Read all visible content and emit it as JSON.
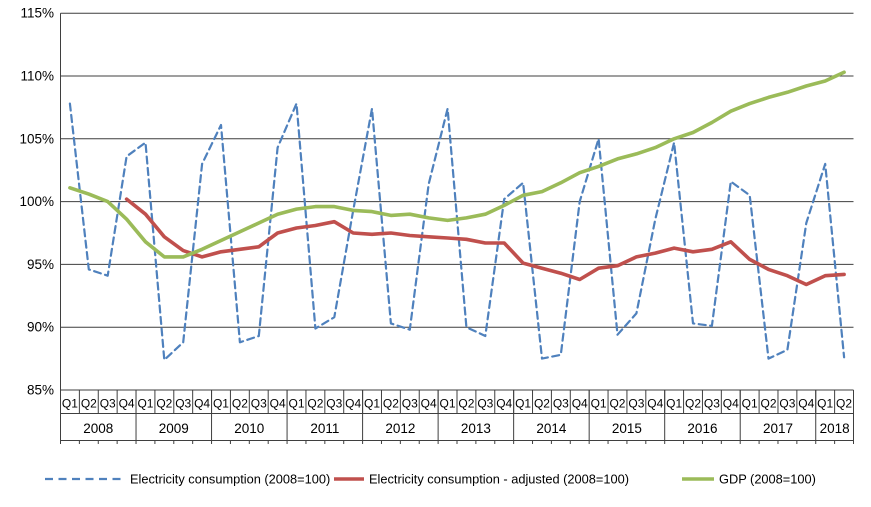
{
  "chart_data": {
    "type": "line",
    "title": "",
    "y_axis": {
      "unit": "%",
      "min": 85,
      "max": 115,
      "step": 5,
      "tick_labels": [
        "115%",
        "110%",
        "105%",
        "100%",
        "95%",
        "90%",
        "85%"
      ]
    },
    "x_axis": {
      "quarter_labels": [
        "Q1",
        "Q2",
        "Q3",
        "Q4",
        "Q1",
        "Q2",
        "Q3",
        "Q4",
        "Q1",
        "Q2",
        "Q3",
        "Q4",
        "Q1",
        "Q2",
        "Q3",
        "Q4",
        "Q1",
        "Q2",
        "Q3",
        "Q4",
        "Q1",
        "Q2",
        "Q3",
        "Q4",
        "Q1",
        "Q2",
        "Q3",
        "Q4",
        "Q1",
        "Q2",
        "Q3",
        "Q4",
        "Q1",
        "Q2",
        "Q3",
        "Q4",
        "Q1",
        "Q2",
        "Q3",
        "Q4",
        "Q1",
        "Q2"
      ],
      "years": [
        {
          "label": "2008",
          "quarters": 4
        },
        {
          "label": "2009",
          "quarters": 4
        },
        {
          "label": "2010",
          "quarters": 4
        },
        {
          "label": "2011",
          "quarters": 4
        },
        {
          "label": "2012",
          "quarters": 4
        },
        {
          "label": "2013",
          "quarters": 4
        },
        {
          "label": "2014",
          "quarters": 4
        },
        {
          "label": "2015",
          "quarters": 4
        },
        {
          "label": "2016",
          "quarters": 4
        },
        {
          "label": "2017",
          "quarters": 4
        },
        {
          "label": "2018",
          "quarters": 2
        }
      ]
    },
    "grid": true,
    "legend_position": "bottom",
    "series": [
      {
        "name": "Electricity consumption (2008=100)",
        "slug": "electricity-consumption",
        "color": "#4F81BD",
        "style": "dashed",
        "start_index": 0,
        "values": [
          107.8,
          94.6,
          94.1,
          103.6,
          104.7,
          87.4,
          88.8,
          103.0,
          106.1,
          88.8,
          89.3,
          104.3,
          107.8,
          89.9,
          90.8,
          99.3,
          107.4,
          90.3,
          89.8,
          101.4,
          107.4,
          90.0,
          89.3,
          100.2,
          101.5,
          87.5,
          87.8,
          100.0,
          105.0,
          89.4,
          91.1,
          98.6,
          104.7,
          90.3,
          90.1,
          101.6,
          100.5,
          87.5,
          88.2,
          98.3,
          103.0,
          87.6
        ]
      },
      {
        "name": "Electricity consumption - adjusted (2008=100)",
        "slug": "electricity-consumption-adjusted",
        "color": "#C0504D",
        "style": "solid",
        "start_index": 3,
        "values": [
          100.2,
          99.0,
          97.2,
          96.1,
          95.6,
          96.0,
          96.2,
          96.4,
          97.5,
          97.9,
          98.1,
          98.4,
          97.5,
          97.4,
          97.5,
          97.3,
          97.2,
          97.1,
          97.0,
          96.7,
          96.7,
          95.1,
          94.7,
          94.3,
          93.8,
          94.7,
          94.9,
          95.6,
          95.9,
          96.3,
          96.0,
          96.2,
          96.8,
          95.4,
          94.6,
          94.1,
          93.4,
          94.1,
          94.2
        ]
      },
      {
        "name": "GDP (2008=100)",
        "slug": "gdp",
        "color": "#9BBB59",
        "style": "solid",
        "start_index": 0,
        "values": [
          101.1,
          100.6,
          100.0,
          98.6,
          96.8,
          95.6,
          95.6,
          96.2,
          96.9,
          97.6,
          98.3,
          99.0,
          99.4,
          99.6,
          99.6,
          99.3,
          99.2,
          98.9,
          99.0,
          98.7,
          98.5,
          98.7,
          99.0,
          99.7,
          100.5,
          100.8,
          101.5,
          102.3,
          102.8,
          103.4,
          103.8,
          104.3,
          105.0,
          105.5,
          106.3,
          107.2,
          107.8,
          108.3,
          108.7,
          109.2,
          109.6,
          110.3
        ]
      }
    ],
    "colors": {
      "gridline": "#3f3f3f",
      "axis": "#3f3f3f",
      "background": "#ffffff"
    }
  }
}
